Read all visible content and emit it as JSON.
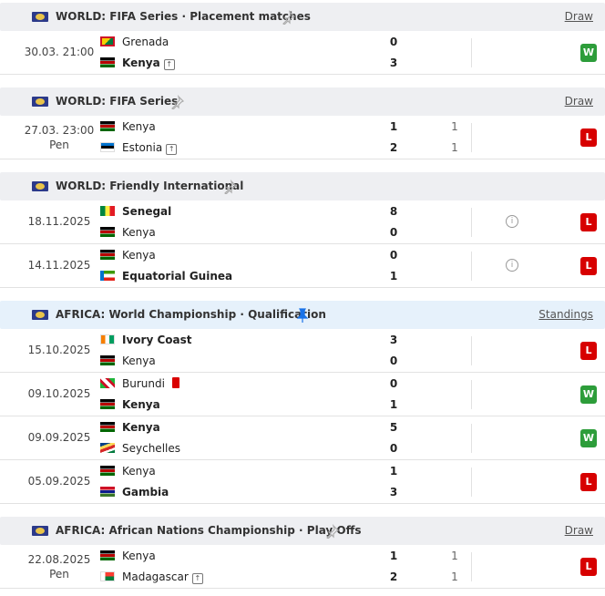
{
  "sections": [
    {
      "title": "WORLD: FIFA Series · Placement matches",
      "link": "Draw",
      "matches": [
        {
          "date": "30.03. 21:00",
          "teams": [
            {
              "name": "Grenada",
              "score": 0
            },
            {
              "name": "Kenya",
              "score": 3
            }
          ],
          "result": "W"
        }
      ]
    },
    {
      "title": "WORLD: FIFA Series",
      "link": "Draw",
      "matches": [
        {
          "date": "27.03. 23:00",
          "note": "Pen",
          "teams": [
            {
              "name": "Kenya",
              "score": 1,
              "pen": 1
            },
            {
              "name": "Estonia",
              "score": 2,
              "pen": 1
            }
          ],
          "result": "L"
        }
      ]
    },
    {
      "title": "WORLD: Friendly International",
      "matches": [
        {
          "date": "18.11.2025",
          "teams": [
            {
              "name": "Senegal",
              "score": 8
            },
            {
              "name": "Kenya",
              "score": 0
            }
          ],
          "result": "L"
        },
        {
          "date": "14.11.2025",
          "teams": [
            {
              "name": "Kenya",
              "score": 0
            },
            {
              "name": "Equatorial Guinea",
              "score": 1
            }
          ],
          "result": "L"
        }
      ]
    },
    {
      "title": "AFRICA: World Championship · Qualification",
      "link": "Standings",
      "matches": [
        {
          "date": "15.10.2025",
          "teams": [
            {
              "name": "Ivory Coast",
              "score": 3
            },
            {
              "name": "Kenya",
              "score": 0
            }
          ],
          "result": "L"
        },
        {
          "date": "09.10.2025",
          "teams": [
            {
              "name": "Burundi",
              "score": 0
            },
            {
              "name": "Kenya",
              "score": 1
            }
          ],
          "result": "W"
        },
        {
          "date": "09.09.2025",
          "teams": [
            {
              "name": "Kenya",
              "score": 5
            },
            {
              "name": "Seychelles",
              "score": 0
            }
          ],
          "result": "W"
        },
        {
          "date": "05.09.2025",
          "teams": [
            {
              "name": "Kenya",
              "score": 1
            },
            {
              "name": "Gambia",
              "score": 3
            }
          ],
          "result": "L"
        }
      ]
    },
    {
      "title": "AFRICA: African Nations Championship · Play Offs",
      "link": "Draw",
      "matches": [
        {
          "date": "22.08.2025",
          "note": "Pen",
          "teams": [
            {
              "name": "Kenya",
              "score": 1,
              "pen": 1
            },
            {
              "name": "Madagascar",
              "score": 2,
              "pen": 1
            }
          ],
          "result": "L"
        }
      ]
    }
  ]
}
